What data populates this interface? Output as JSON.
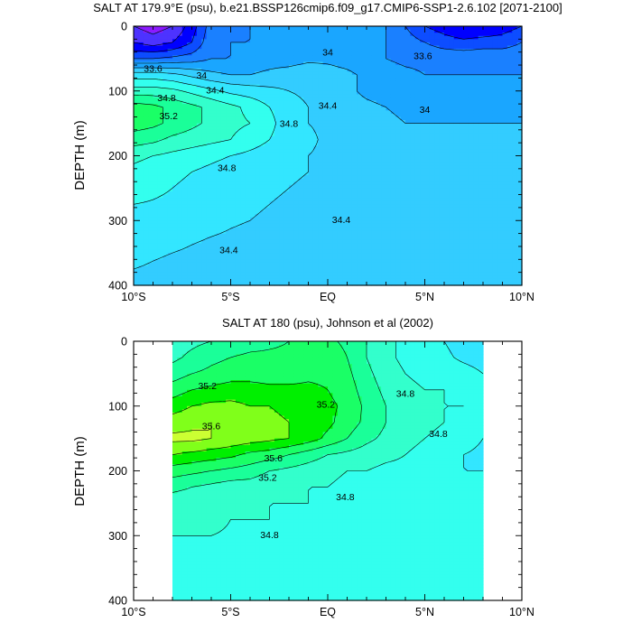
{
  "colors": {
    "fill_ramp": [
      "#ff33ff",
      "#8c1aff",
      "#4d33ff",
      "#0000ff",
      "#0d4dff",
      "#1a80ff",
      "#1aa6ff",
      "#33ccff",
      "#33e6ff",
      "#33ffee",
      "#33ffcc",
      "#1aff99",
      "#1aff66",
      "#00f000",
      "#80ff1a",
      "#ccff33",
      "#ffff1a",
      "#ffe61a",
      "#ffcc33"
    ],
    "missing": "#ffffff",
    "contour_line": "#000000"
  },
  "chart_data": [
    {
      "type": "heatmap",
      "subtype": "filled-contour",
      "title": "SALT AT 179.9°E (psu), b.e21.BSSP126cmip6.f09_g17.CMIP6-SSP1-2.6.102 [2071-2100]",
      "xlabel": "",
      "ylabel": "DEPTH (m)",
      "xlim": [
        -10,
        10
      ],
      "ylim": [
        400,
        0
      ],
      "xticks": [
        "10°S",
        "5°S",
        "EQ",
        "5°N",
        "10°N"
      ],
      "xtick_values": [
        -10,
        -5,
        0,
        5,
        10
      ],
      "yticks": [
        0,
        100,
        200,
        300,
        400
      ],
      "data_x_extent": [
        -10,
        10
      ],
      "contour_levels": [
        33.0,
        33.2,
        33.4,
        33.6,
        33.8,
        34.0,
        34.2,
        34.4,
        34.6,
        34.8,
        35.0,
        35.2,
        35.4,
        35.6,
        35.8,
        36.0
      ],
      "contour_labels": [
        {
          "text": "33.6",
          "x": -9.0,
          "y": 65
        },
        {
          "text": "34",
          "x": -6.5,
          "y": 75
        },
        {
          "text": "34.4",
          "x": -5.8,
          "y": 98
        },
        {
          "text": "34.8",
          "x": -8.3,
          "y": 110
        },
        {
          "text": "35.2",
          "x": -8.2,
          "y": 138
        },
        {
          "text": "34.8",
          "x": -2.0,
          "y": 150
        },
        {
          "text": "34.8",
          "x": -5.2,
          "y": 218
        },
        {
          "text": "34.4",
          "x": -5.1,
          "y": 345
        },
        {
          "text": "34",
          "x": 0.0,
          "y": 40
        },
        {
          "text": "34.4",
          "x": 0.0,
          "y": 122
        },
        {
          "text": "34.4",
          "x": 0.7,
          "y": 298
        },
        {
          "text": "33.6",
          "x": 4.9,
          "y": 45
        },
        {
          "text": "34",
          "x": 5.0,
          "y": 128
        }
      ],
      "z": [
        [
          33.2,
          33.1,
          33.2,
          33.5,
          33.9,
          33.9,
          34.0,
          34.1,
          34.2,
          34.2,
          34.2,
          34.2,
          34.1,
          34.0,
          33.8,
          33.6,
          33.5,
          33.4,
          33.4,
          33.5,
          33.6
        ],
        [
          33.4,
          33.3,
          33.4,
          33.6,
          33.95,
          34.0,
          34.0,
          34.05,
          34.1,
          34.15,
          34.15,
          34.1,
          34.05,
          34.0,
          33.9,
          33.8,
          33.7,
          33.65,
          33.7,
          33.7,
          33.8
        ],
        [
          33.8,
          33.8,
          33.85,
          33.9,
          34.0,
          34.0,
          34.05,
          34.1,
          34.1,
          34.15,
          34.15,
          34.1,
          34.05,
          34.0,
          33.95,
          33.95,
          33.95,
          33.95,
          33.95,
          33.95,
          33.95
        ],
        [
          34.5,
          34.5,
          34.45,
          34.35,
          34.25,
          34.2,
          34.2,
          34.25,
          34.3,
          34.35,
          34.3,
          34.25,
          34.15,
          34.1,
          34.05,
          34.0,
          34.0,
          34.0,
          34.0,
          34.0,
          34.0
        ],
        [
          34.9,
          34.9,
          34.85,
          34.75,
          34.65,
          34.55,
          34.5,
          34.45,
          34.4,
          34.35,
          34.3,
          34.25,
          34.15,
          34.1,
          34.05,
          34.05,
          34.05,
          34.05,
          34.05,
          34.05,
          34.05
        ],
        [
          35.3,
          35.25,
          35.15,
          35.05,
          34.95,
          34.85,
          34.75,
          34.6,
          34.5,
          34.4,
          34.3,
          34.3,
          34.25,
          34.2,
          34.15,
          34.1,
          34.1,
          34.1,
          34.1,
          34.1,
          34.1
        ],
        [
          35.3,
          35.25,
          35.15,
          35.05,
          34.95,
          34.85,
          34.8,
          34.65,
          34.5,
          34.4,
          34.35,
          34.3,
          34.3,
          34.25,
          34.2,
          34.2,
          34.2,
          34.2,
          34.2,
          34.2,
          34.2
        ],
        [
          35.1,
          35.05,
          34.95,
          34.9,
          34.85,
          34.8,
          34.7,
          34.6,
          34.5,
          34.45,
          34.35,
          34.3,
          34.3,
          34.3,
          34.3,
          34.3,
          34.3,
          34.3,
          34.3,
          34.3,
          34.3
        ],
        [
          34.85,
          34.8,
          34.75,
          34.7,
          34.65,
          34.6,
          34.55,
          34.5,
          34.45,
          34.4,
          34.35,
          34.3,
          34.3,
          34.3,
          34.3,
          34.3,
          34.3,
          34.3,
          34.3,
          34.3,
          34.3
        ],
        [
          34.75,
          34.7,
          34.65,
          34.6,
          34.55,
          34.5,
          34.48,
          34.45,
          34.42,
          34.4,
          34.35,
          34.3,
          34.3,
          34.3,
          34.3,
          34.3,
          34.3,
          34.3,
          34.3,
          34.3,
          34.3
        ],
        [
          34.7,
          34.65,
          34.6,
          34.55,
          34.5,
          34.48,
          34.45,
          34.42,
          34.4,
          34.38,
          34.35,
          34.3,
          34.3,
          34.3,
          34.3,
          34.3,
          34.3,
          34.3,
          34.3,
          34.3,
          34.3
        ],
        [
          34.6,
          34.58,
          34.55,
          34.52,
          34.5,
          34.45,
          34.42,
          34.4,
          34.38,
          34.36,
          34.33,
          34.3,
          34.3,
          34.3,
          34.3,
          34.3,
          34.3,
          34.3,
          34.3,
          34.3,
          34.3
        ],
        [
          34.55,
          34.52,
          34.5,
          34.47,
          34.45,
          34.42,
          34.4,
          34.38,
          34.36,
          34.34,
          34.32,
          34.3,
          34.3,
          34.3,
          34.3,
          34.3,
          34.3,
          34.3,
          34.3,
          34.3,
          34.3
        ],
        [
          34.5,
          34.47,
          34.45,
          34.42,
          34.4,
          34.38,
          34.36,
          34.34,
          34.33,
          34.32,
          34.3,
          34.3,
          34.3,
          34.3,
          34.3,
          34.3,
          34.3,
          34.3,
          34.3,
          34.3,
          34.3
        ],
        [
          34.45,
          34.42,
          34.4,
          34.38,
          34.36,
          34.35,
          34.34,
          34.33,
          34.32,
          34.31,
          34.3,
          34.3,
          34.3,
          34.3,
          34.3,
          34.3,
          34.3,
          34.3,
          34.3,
          34.3,
          34.3
        ],
        [
          34.4,
          34.38,
          34.36,
          34.35,
          34.34,
          34.33,
          34.32,
          34.31,
          34.3,
          34.3,
          34.3,
          34.3,
          34.3,
          34.3,
          34.3,
          34.3,
          34.3,
          34.3,
          34.3,
          34.3,
          34.3
        ],
        [
          34.35,
          34.34,
          34.33,
          34.32,
          34.31,
          34.3,
          34.3,
          34.3,
          34.3,
          34.3,
          34.3,
          34.3,
          34.3,
          34.3,
          34.3,
          34.3,
          34.3,
          34.3,
          34.3,
          34.3,
          34.3
        ]
      ]
    },
    {
      "type": "heatmap",
      "subtype": "filled-contour",
      "title": "SALT AT 180 (psu), Johnson et al (2002)",
      "xlabel": "",
      "ylabel": "DEPTH (m)",
      "xlim": [
        -10,
        10
      ],
      "ylim": [
        400,
        0
      ],
      "xticks": [
        "10°S",
        "5°S",
        "EQ",
        "5°N",
        "10°N"
      ],
      "xtick_values": [
        -10,
        -5,
        0,
        5,
        10
      ],
      "yticks": [
        0,
        100,
        200,
        300,
        400
      ],
      "data_x_extent": [
        -8,
        8
      ],
      "contour_levels": [
        33.0,
        33.2,
        33.4,
        33.6,
        33.8,
        34.0,
        34.2,
        34.4,
        34.6,
        34.8,
        35.0,
        35.2,
        35.4,
        35.6,
        35.8,
        36.0
      ],
      "contour_labels": [
        {
          "text": "35.2",
          "x": -6.2,
          "y": 68
        },
        {
          "text": "35.2",
          "x": -0.1,
          "y": 97
        },
        {
          "text": "34.8",
          "x": 4.0,
          "y": 80
        },
        {
          "text": "35.6",
          "x": -6.0,
          "y": 130
        },
        {
          "text": "34.8",
          "x": 5.7,
          "y": 142
        },
        {
          "text": "35.6",
          "x": -2.8,
          "y": 180
        },
        {
          "text": "35.2",
          "x": -3.1,
          "y": 210
        },
        {
          "text": "34.8",
          "x": 0.9,
          "y": 240
        },
        {
          "text": "34.8",
          "x": -3.0,
          "y": 298
        }
      ],
      "z": [
        [
          34.9,
          34.95,
          35.0,
          35.05,
          35.1,
          35.15,
          35.2,
          35.25,
          35.25,
          35.15,
          35.0,
          34.85,
          34.75,
          34.7,
          34.6,
          34.5,
          34.45
        ],
        [
          34.95,
          35.05,
          35.15,
          35.2,
          35.25,
          35.25,
          35.25,
          35.3,
          35.35,
          35.2,
          35.0,
          34.85,
          34.75,
          34.7,
          34.65,
          34.55,
          34.5
        ],
        [
          35.1,
          35.2,
          35.25,
          35.3,
          35.3,
          35.3,
          35.3,
          35.35,
          35.35,
          35.25,
          35.05,
          34.9,
          34.8,
          34.75,
          34.75,
          34.7,
          34.6
        ],
        [
          35.3,
          35.4,
          35.45,
          35.5,
          35.5,
          35.45,
          35.45,
          35.45,
          35.4,
          35.3,
          35.1,
          34.95,
          34.85,
          34.8,
          34.8,
          34.75,
          34.7
        ],
        [
          35.5,
          35.6,
          35.65,
          35.65,
          35.6,
          35.6,
          35.55,
          35.5,
          35.45,
          35.35,
          35.15,
          35.0,
          34.9,
          34.85,
          34.8,
          34.8,
          34.75
        ],
        [
          35.7,
          35.75,
          35.8,
          35.75,
          35.7,
          35.65,
          35.6,
          35.55,
          35.45,
          35.3,
          35.15,
          35.0,
          34.9,
          34.85,
          34.8,
          34.75,
          34.7
        ],
        [
          35.85,
          35.85,
          35.8,
          35.75,
          35.7,
          35.65,
          35.6,
          35.5,
          35.35,
          35.2,
          35.05,
          34.95,
          34.85,
          34.8,
          34.75,
          34.7,
          34.6
        ],
        [
          35.6,
          35.55,
          35.5,
          35.45,
          35.35,
          35.3,
          35.2,
          35.1,
          35.0,
          34.95,
          34.9,
          34.85,
          34.8,
          34.75,
          34.7,
          34.6,
          34.55
        ],
        [
          35.3,
          35.25,
          35.2,
          35.15,
          35.1,
          35.0,
          34.95,
          34.9,
          34.85,
          34.8,
          34.8,
          34.75,
          34.75,
          34.7,
          34.65,
          34.6,
          34.6
        ],
        [
          35.05,
          35.0,
          34.95,
          34.9,
          34.9,
          34.85,
          34.85,
          34.8,
          34.8,
          34.75,
          34.75,
          34.7,
          34.7,
          34.7,
          34.7,
          34.7,
          34.7
        ],
        [
          34.9,
          34.9,
          34.85,
          34.85,
          34.85,
          34.8,
          34.8,
          34.8,
          34.75,
          34.75,
          34.7,
          34.7,
          34.7,
          34.7,
          34.7,
          34.7,
          34.7
        ],
        [
          34.85,
          34.85,
          34.85,
          34.8,
          34.8,
          34.8,
          34.75,
          34.75,
          34.72,
          34.72,
          34.7,
          34.7,
          34.7,
          34.7,
          34.7,
          34.7,
          34.7
        ],
        [
          34.8,
          34.8,
          34.8,
          34.78,
          34.75,
          34.75,
          34.72,
          34.72,
          34.7,
          34.7,
          34.7,
          34.7,
          34.7,
          34.7,
          34.7,
          34.7,
          34.7
        ],
        [
          34.75,
          34.75,
          34.75,
          34.72,
          34.72,
          34.72,
          34.7,
          34.7,
          34.7,
          34.7,
          34.7,
          34.7,
          34.7,
          34.7,
          34.7,
          34.7,
          34.7
        ],
        [
          34.72,
          34.72,
          34.72,
          34.7,
          34.7,
          34.7,
          34.7,
          34.7,
          34.7,
          34.7,
          34.7,
          34.7,
          34.7,
          34.7,
          34.7,
          34.7,
          34.7
        ],
        [
          34.7,
          34.7,
          34.7,
          34.7,
          34.7,
          34.7,
          34.7,
          34.7,
          34.7,
          34.7,
          34.7,
          34.7,
          34.7,
          34.7,
          34.7,
          34.7,
          34.7
        ],
        [
          34.7,
          34.7,
          34.7,
          34.7,
          34.7,
          34.7,
          34.7,
          34.7,
          34.7,
          34.7,
          34.7,
          34.7,
          34.7,
          34.7,
          34.7,
          34.7,
          34.7
        ]
      ]
    }
  ]
}
